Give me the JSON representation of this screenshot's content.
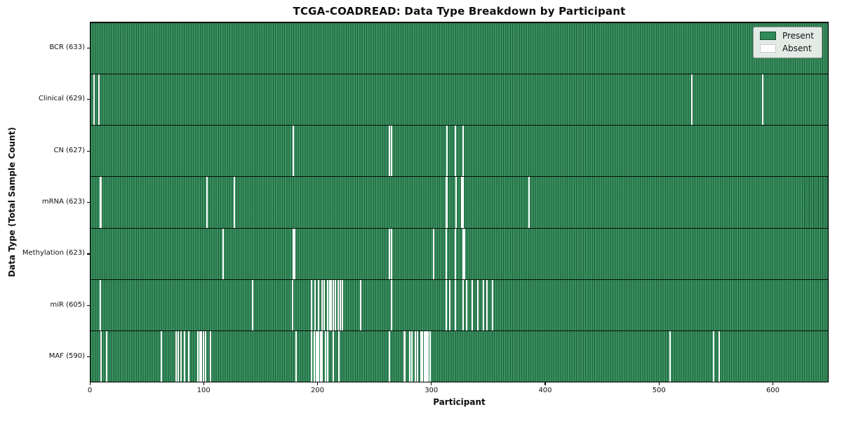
{
  "figure": {
    "title": "TCGA-COADREAD: Data Type Breakdown by Participant",
    "xlabel": "Participant",
    "ylabel": "Data Type (Total Sample Count)"
  },
  "legend": {
    "present_label": "Present",
    "absent_label": "Absent",
    "position": "upper right"
  },
  "colors": {
    "present": "#2e8b57",
    "absent": "#ffffff",
    "bar_edge_tint": "rgba(0,0,0,0.33)",
    "bar_light_tint": "rgba(255,255,255,0.05)",
    "legend_present_border": "rgba(0,0,0,0.45)",
    "legend_absent_border": "#c8cdc8"
  },
  "chart_data": {
    "type": "heatmap",
    "title": "TCGA-COADREAD: Data Type Breakdown by Participant",
    "xlabel": "Participant",
    "ylabel": "Data Type (Total Sample Count)",
    "legend_entries": [
      "Present",
      "Absent"
    ],
    "legend_position": "upper right",
    "grid": false,
    "x_ticks": [
      0,
      100,
      200,
      300,
      400,
      500,
      600
    ],
    "x_range": [
      0,
      649
    ],
    "total_participants": 633,
    "rows": [
      {
        "label": "BCR (633)",
        "data_type": "BCR",
        "sample_count": 633,
        "absent_participants": []
      },
      {
        "label": "Clinical (629)",
        "data_type": "Clinical",
        "sample_count": 629,
        "absent_participants": [
          3,
          7,
          528,
          590
        ]
      },
      {
        "label": "CN (627)",
        "data_type": "CN",
        "sample_count": 627,
        "absent_participants": [
          178,
          262,
          264,
          313,
          320,
          327
        ]
      },
      {
        "label": "mRNA (623)",
        "data_type": "mRNA",
        "sample_count": 623,
        "absent_participants": [
          8,
          9,
          102,
          126,
          312,
          313,
          321,
          326,
          327,
          385
        ]
      },
      {
        "label": "Methylation (623)",
        "data_type": "Methylation",
        "sample_count": 623,
        "absent_participants": [
          116,
          178,
          179,
          262,
          264,
          301,
          312,
          320,
          327,
          328
        ]
      },
      {
        "label": "miR (605)",
        "data_type": "miR",
        "sample_count": 605,
        "absent_participants": [
          8,
          142,
          177,
          194,
          197,
          200,
          203,
          205,
          208,
          210,
          211,
          213,
          215,
          217,
          219,
          221,
          237,
          264,
          312,
          315,
          320,
          327,
          330,
          335,
          340,
          345,
          348,
          353
        ]
      },
      {
        "label": "MAF (590)",
        "data_type": "MAF",
        "sample_count": 590,
        "absent_participants": [
          9,
          14,
          62,
          75,
          77,
          79,
          82,
          86,
          94,
          96,
          97,
          99,
          101,
          105,
          180,
          194,
          196,
          198,
          199,
          200,
          202,
          203,
          206,
          208,
          213,
          218,
          262,
          275,
          276,
          280,
          282,
          285,
          287,
          290,
          291,
          293,
          294,
          295,
          296,
          298,
          509,
          547,
          552
        ]
      }
    ]
  }
}
